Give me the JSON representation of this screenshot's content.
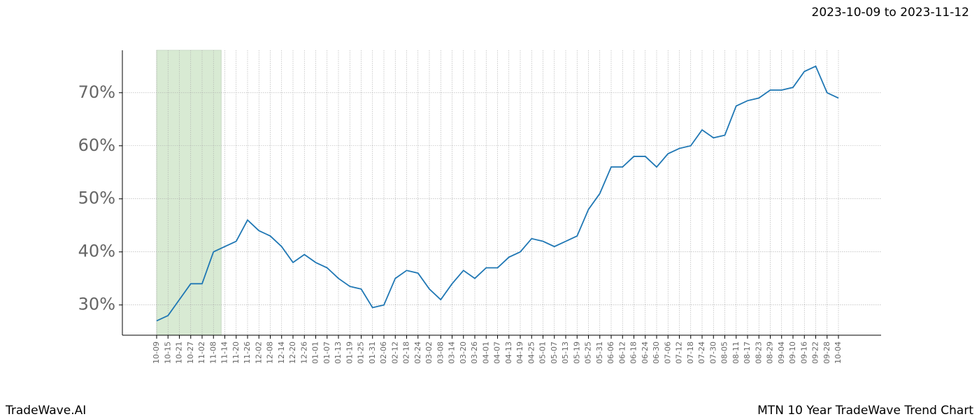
{
  "chart_data": {
    "type": "line",
    "title": "MTN 10 Year TradeWave Trend Chart",
    "subtitle": "2023-10-09 to 2023-11-12",
    "brand": "TradeWave.AI",
    "categories": [
      "10-09",
      "10-15",
      "10-21",
      "10-27",
      "11-02",
      "11-08",
      "11-14",
      "11-20",
      "11-26",
      "12-02",
      "12-08",
      "12-14",
      "12-20",
      "12-26",
      "01-01",
      "01-07",
      "01-13",
      "01-19",
      "01-25",
      "01-31",
      "02-06",
      "02-12",
      "02-18",
      "02-24",
      "03-02",
      "03-08",
      "03-14",
      "03-20",
      "03-26",
      "04-01",
      "04-07",
      "04-13",
      "04-19",
      "04-25",
      "05-01",
      "05-07",
      "05-13",
      "05-19",
      "05-25",
      "05-31",
      "06-06",
      "06-12",
      "06-18",
      "06-24",
      "06-30",
      "07-06",
      "07-12",
      "07-18",
      "07-24",
      "07-30",
      "08-05",
      "08-11",
      "08-17",
      "08-23",
      "08-29",
      "09-04",
      "09-10",
      "09-16",
      "09-22",
      "09-28",
      "10-04"
    ],
    "series": [
      {
        "color": "#1f77b4",
        "values": [
          27,
          28,
          31,
          34,
          34,
          40,
          41,
          42,
          46,
          44,
          43,
          41,
          38,
          39.5,
          38,
          37,
          35,
          33.5,
          33,
          29.5,
          30,
          35,
          36.5,
          36,
          33,
          31,
          34,
          36.5,
          35,
          37,
          37,
          39,
          40,
          42.5,
          42,
          41,
          42,
          43,
          48,
          51,
          56,
          56,
          58,
          58,
          56,
          58.5,
          59.5,
          60,
          63,
          61.5,
          62,
          67.5,
          68.5,
          69,
          70.5,
          70.5,
          71,
          74,
          75,
          70,
          69
        ]
      }
    ],
    "ylim": [
      24.3,
      78
    ],
    "yticks": [
      {
        "value": 30,
        "label": "30%"
      },
      {
        "value": 40,
        "label": "40%"
      },
      {
        "value": 50,
        "label": "50%"
      },
      {
        "value": 60,
        "label": "60%"
      },
      {
        "value": 70,
        "label": "70%"
      }
    ],
    "grid": true,
    "highlight_color": "#d8ead3"
  }
}
